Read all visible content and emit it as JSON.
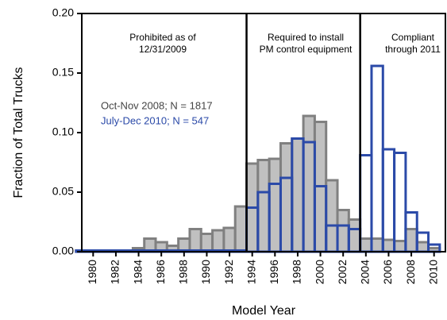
{
  "chart_data": {
    "type": "histogram",
    "xlabel": "Model Year",
    "ylabel": "Fraction of Total Trucks",
    "x": [
      1979,
      1980,
      1981,
      1982,
      1983,
      1984,
      1985,
      1986,
      1987,
      1988,
      1989,
      1990,
      1991,
      1992,
      1993,
      1994,
      1995,
      1996,
      1997,
      1998,
      1999,
      2000,
      2001,
      2002,
      2003,
      2004,
      2005,
      2006,
      2007,
      2008,
      2009,
      2010
    ],
    "series": [
      {
        "name": "Oct-Nov 2008; N = 1817",
        "color": "#808080",
        "fill": "#c0c0c0",
        "values": [
          0.001,
          0.001,
          0.001,
          0.001,
          0.001,
          0.003,
          0.011,
          0.008,
          0.005,
          0.011,
          0.019,
          0.015,
          0.018,
          0.02,
          0.038,
          0.074,
          0.077,
          0.078,
          0.091,
          0.095,
          0.114,
          0.109,
          0.06,
          0.035,
          0.027,
          0.011,
          0.011,
          0.01,
          0.009,
          0.019,
          0.008,
          0.003
        ]
      },
      {
        "name": "July-Dec 2010; N = 547",
        "color": "#2b4aa8",
        "fill": "none",
        "values": [
          0.001,
          0.001,
          0.001,
          0.001,
          0.001,
          0.001,
          0.001,
          0.001,
          0.001,
          0.001,
          0.001,
          0.001,
          0.001,
          0.001,
          0.001,
          0.037,
          0.05,
          0.057,
          0.062,
          0.095,
          0.092,
          0.055,
          0.022,
          0.022,
          0.019,
          0.081,
          0.156,
          0.086,
          0.083,
          0.033,
          0.016,
          0.006
        ]
      }
    ],
    "xlim": [
      1979,
      2011
    ],
    "ylim": [
      0,
      0.2
    ],
    "xticks": [
      1980,
      1982,
      1984,
      1986,
      1988,
      1990,
      1992,
      1994,
      1996,
      1998,
      2000,
      2002,
      2004,
      2006,
      2008,
      2010
    ],
    "yticks": [
      {
        "value": 0,
        "label": "0.00"
      },
      {
        "value": 0.05,
        "label": "0.05"
      },
      {
        "value": 0.1,
        "label": "0.10"
      },
      {
        "value": 0.15,
        "label": "0.15"
      },
      {
        "value": 0.2,
        "label": "0.20"
      }
    ],
    "dividers": [
      1993.5,
      2003.5
    ],
    "annotations": [
      [
        "Prohibited as of",
        "12/31/2009"
      ],
      [
        "Required to install",
        "PM control equipment"
      ],
      [
        "Compliant",
        "through 2011"
      ]
    ]
  }
}
